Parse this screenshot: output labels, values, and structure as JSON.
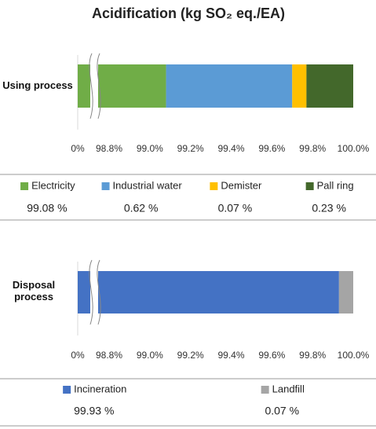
{
  "chart_data": [
    {
      "type": "bar",
      "orientation": "horizontal",
      "stacked": true,
      "axis_break": true,
      "title": "Acidification (kg SO₂ eq./EA)",
      "categories": [
        "Using process"
      ],
      "series": [
        {
          "name": "Electricity",
          "color": "#70ad47",
          "values": [
            99.08
          ],
          "value_labels": [
            "99.08 %"
          ]
        },
        {
          "name": "Industrial water",
          "color": "#5b9bd5",
          "values": [
            0.62
          ],
          "value_labels": [
            "0.62 %"
          ]
        },
        {
          "name": "Demister",
          "color": "#ffc000",
          "values": [
            0.07
          ],
          "value_labels": [
            "0.07 %"
          ]
        },
        {
          "name": "Pall ring",
          "color": "#43682b",
          "values": [
            0.23
          ],
          "value_labels": [
            "0.23 %"
          ]
        }
      ],
      "xlim": [
        0,
        100
      ],
      "xticks": [
        {
          "value": 0,
          "label": "0%"
        },
        {
          "value": 98.8,
          "label": "98.8%"
        },
        {
          "value": 99.0,
          "label": "99.0%"
        },
        {
          "value": 99.2,
          "label": "99.2%"
        },
        {
          "value": 99.4,
          "label": "99.4%"
        },
        {
          "value": 99.6,
          "label": "99.6%"
        },
        {
          "value": 99.8,
          "label": "99.8%"
        },
        {
          "value": 100.0,
          "label": "100.0%"
        }
      ]
    },
    {
      "type": "bar",
      "orientation": "horizontal",
      "stacked": true,
      "axis_break": true,
      "categories": [
        "Disposal process"
      ],
      "series": [
        {
          "name": "Incineration",
          "color": "#4472c4",
          "values": [
            99.93
          ],
          "value_labels": [
            "99.93 %"
          ]
        },
        {
          "name": "Landfill",
          "color": "#a5a5a5",
          "values": [
            0.07
          ],
          "value_labels": [
            "0.07 %"
          ]
        }
      ],
      "xlim": [
        0,
        100
      ],
      "xticks": [
        {
          "value": 0,
          "label": "0%"
        },
        {
          "value": 98.8,
          "label": "98.8%"
        },
        {
          "value": 99.0,
          "label": "99.0%"
        },
        {
          "value": 99.2,
          "label": "99.2%"
        },
        {
          "value": 99.4,
          "label": "99.4%"
        },
        {
          "value": 99.6,
          "label": "99.6%"
        },
        {
          "value": 99.8,
          "label": "99.8%"
        },
        {
          "value": 100.0,
          "label": "100.0%"
        }
      ]
    }
  ]
}
